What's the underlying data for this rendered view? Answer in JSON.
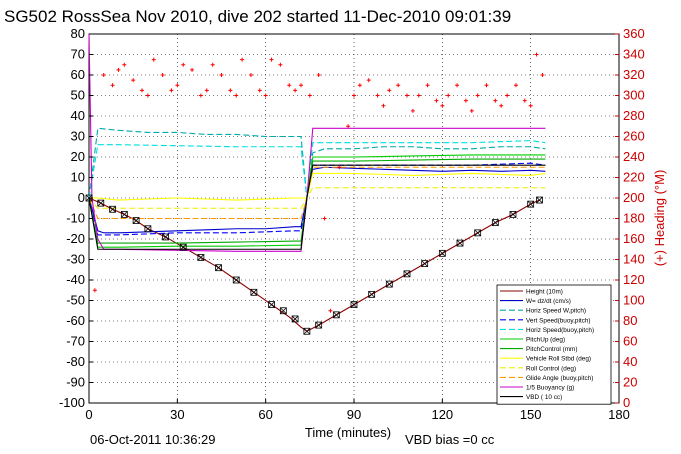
{
  "chart_data": {
    "type": "line",
    "title": "SG502 RossSea Nov 2010, dive 202 started 11-Dec-2010 09:01:39",
    "xlabel": "Time (minutes)",
    "ylabel_right": "(+) Heading (°M)",
    "xlim": [
      0,
      180
    ],
    "ylim": [
      -100,
      80
    ],
    "ylim_right": [
      0,
      360
    ],
    "x_ticks": [
      "0",
      "30",
      "60",
      "90",
      "120",
      "150",
      "180"
    ],
    "y_ticks": [
      "-100",
      "-90",
      "-80",
      "-70",
      "-60",
      "-50",
      "-40",
      "-30",
      "-20",
      "-10",
      "0",
      "10",
      "20",
      "30",
      "40",
      "50",
      "60",
      "70",
      "80"
    ],
    "y_ticks_right": [
      "0",
      "20",
      "40",
      "60",
      "80",
      "100",
      "120",
      "140",
      "160",
      "180",
      "200",
      "220",
      "240",
      "260",
      "280",
      "300",
      "320",
      "340",
      "360"
    ],
    "grid": true,
    "legend_position": "lower-right",
    "footer_date": "06-Oct-2011 10:36:29",
    "footer_vbd": "VBD bias =0 cc",
    "series": [
      {
        "name": "Height (10m)",
        "color": "#8b0000",
        "x": [
          0,
          4,
          8,
          12,
          16,
          20,
          26,
          32,
          38,
          44,
          50,
          56,
          62,
          68,
          72,
          74,
          78,
          84,
          90,
          96,
          102,
          108,
          114,
          120,
          126,
          132,
          138,
          144,
          150,
          153
        ],
        "y": [
          0,
          -2.5,
          -5.5,
          -8,
          -11,
          -15,
          -19,
          -24,
          -29,
          -34,
          -40,
          -46,
          -52,
          -58,
          -63,
          -65,
          -62,
          -57,
          -52,
          -47,
          -42,
          -37,
          -32,
          -27,
          -22,
          -17,
          -12,
          -8,
          -3,
          -1
        ]
      },
      {
        "name": "W= dz/dt (cm/s)",
        "color": "#0000cc",
        "x": [
          0,
          1,
          3,
          5,
          10,
          20,
          30,
          40,
          50,
          60,
          70,
          72,
          74,
          76,
          80,
          90,
          100,
          110,
          120,
          130,
          140,
          150,
          155
        ],
        "y": [
          0,
          -5,
          -16,
          -17,
          -17,
          -16.5,
          -16,
          -15.5,
          -15,
          -15,
          -14,
          -14,
          0,
          14,
          15,
          14.5,
          14,
          13.5,
          13,
          13.5,
          13,
          13.5,
          13
        ]
      },
      {
        "name": "Horiz Speed W,pitch)",
        "color": "#00aaaa",
        "x": [
          0,
          3,
          10,
          20,
          30,
          40,
          50,
          60,
          70,
          72,
          74,
          76,
          80,
          90,
          100,
          110,
          120,
          130,
          140,
          150,
          155
        ],
        "y": [
          0,
          34,
          33,
          32,
          32,
          31,
          31,
          30,
          30,
          30,
          0,
          22,
          24,
          24,
          25,
          25,
          24,
          24,
          25,
          25,
          24
        ]
      },
      {
        "name": "Vert Speed(buoy,pitch)",
        "color": "#0000ff",
        "x": [
          0,
          3,
          10,
          30,
          50,
          70,
          72,
          74,
          76,
          90,
          110,
          130,
          150,
          155
        ],
        "y": [
          0,
          -18,
          -18,
          -17,
          -17,
          -16,
          -16,
          0,
          16,
          16,
          16,
          16,
          17,
          16
        ]
      },
      {
        "name": "Horiz Speed(buoy,pitch)",
        "color": "#00dddd",
        "x": [
          0,
          3,
          10,
          30,
          50,
          70,
          72,
          74,
          76,
          90,
          110,
          130,
          150,
          155
        ],
        "y": [
          0,
          26,
          26,
          25.5,
          25,
          25,
          25,
          0,
          27,
          27,
          27,
          27,
          28,
          27
        ]
      },
      {
        "name": "PitchUp (deg)",
        "color": "#00cc00",
        "x": [
          0,
          3,
          10,
          30,
          50,
          70,
          72,
          74,
          76,
          90,
          110,
          130,
          150,
          155
        ],
        "y": [
          0,
          -24,
          -24,
          -23.5,
          -23.5,
          -23,
          -23,
          0,
          20,
          20,
          20.5,
          21,
          21,
          21
        ]
      },
      {
        "name": "PitchControl (mm)",
        "color": "#00aa00",
        "x": [
          0,
          3,
          10,
          30,
          50,
          70,
          72,
          74,
          76,
          90,
          110,
          130,
          150,
          155
        ],
        "y": [
          0,
          -22,
          -22,
          -22,
          -21.5,
          -21,
          -21,
          0,
          18,
          18,
          18.5,
          19,
          19,
          19
        ]
      },
      {
        "name": "Vehicle Roll Stbd (deg)",
        "color": "#ffff00",
        "x": [
          0,
          3,
          10,
          30,
          50,
          70,
          72,
          74,
          76,
          90,
          110,
          130,
          150,
          155
        ],
        "y": [
          0,
          0,
          -1,
          0,
          -1,
          0,
          0,
          0,
          12,
          12,
          11,
          12,
          11,
          12
        ]
      },
      {
        "name": "Roll Control (deg)",
        "color": "#eeee00",
        "x": [
          0,
          3,
          10,
          30,
          50,
          70,
          72,
          74,
          76,
          90,
          110,
          130,
          150,
          155
        ],
        "y": [
          0,
          -5,
          -5,
          -5,
          -5,
          -5,
          -5,
          0,
          5,
          5,
          5,
          5,
          5,
          5
        ]
      },
      {
        "name": "Glide Angle (buoy,pitch)",
        "color": "#ff9900",
        "x": [
          0,
          3,
          10,
          30,
          50,
          70,
          72,
          74,
          76,
          90,
          110,
          130,
          150,
          155
        ],
        "y": [
          0,
          -10,
          -10,
          -10,
          -10,
          -10,
          -10,
          0,
          15,
          15,
          15,
          15,
          15,
          15
        ]
      },
      {
        "name": "1/5 Buoyancy (g)",
        "color": "#cc00cc",
        "x": [
          0,
          1,
          3,
          5,
          10,
          30,
          50,
          70,
          72,
          74,
          76,
          90,
          110,
          130,
          150,
          155
        ],
        "y": [
          80,
          0,
          -20,
          -25,
          -25,
          -25.5,
          -26,
          -26,
          -26,
          0,
          34,
          34,
          34,
          34,
          34,
          34
        ]
      },
      {
        "name": "VBD ( 10 cc)",
        "color": "#000000",
        "x": [
          0,
          3,
          10,
          30,
          50,
          70,
          72,
          74,
          76,
          90,
          110,
          130,
          150,
          155
        ],
        "y": [
          0,
          -25,
          -25,
          -25,
          -25,
          -25,
          -25,
          0,
          16,
          16,
          16,
          16,
          16,
          16
        ]
      }
    ],
    "heading_series": {
      "name": "Heading",
      "axis": "right",
      "color": "#ff0000",
      "x": [
        2,
        5,
        8,
        10,
        12,
        15,
        18,
        20,
        22,
        25,
        28,
        30,
        32,
        35,
        38,
        40,
        42,
        45,
        48,
        50,
        52,
        55,
        58,
        60,
        62,
        65,
        68,
        70,
        72,
        75,
        78,
        80,
        82,
        85,
        88,
        90,
        92,
        95,
        98,
        100,
        102,
        105,
        108,
        110,
        112,
        115,
        118,
        120,
        122,
        125,
        128,
        130,
        132,
        135,
        138,
        140,
        142,
        145,
        148,
        150,
        152,
        154
      ],
      "y": [
        110,
        320,
        310,
        325,
        330,
        315,
        305,
        300,
        335,
        320,
        305,
        310,
        330,
        325,
        300,
        305,
        330,
        320,
        305,
        300,
        335,
        320,
        305,
        300,
        335,
        330,
        310,
        305,
        310,
        300,
        320,
        180,
        90,
        230,
        270,
        300,
        310,
        315,
        300,
        290,
        305,
        310,
        300,
        285,
        300,
        310,
        295,
        290,
        300,
        310,
        295,
        285,
        300,
        310,
        295,
        290,
        300,
        310,
        295,
        290,
        340,
        320
      ]
    },
    "position_markers": {
      "x": [
        0,
        4,
        8,
        12,
        16,
        20,
        26,
        32,
        38,
        44,
        50,
        56,
        62,
        66,
        70,
        74,
        78,
        84,
        90,
        96,
        102,
        108,
        114,
        120,
        126,
        132,
        138,
        144,
        150,
        153
      ],
      "y": [
        0,
        -2.5,
        -5.5,
        -8,
        -11,
        -15,
        -19,
        -24,
        -29,
        -34,
        -40,
        -46,
        -52,
        -55,
        -59,
        -65,
        -62,
        -57,
        -52,
        -47,
        -42,
        -37,
        -32,
        -27,
        -22,
        -17,
        -12,
        -8,
        -3,
        -1
      ]
    }
  }
}
